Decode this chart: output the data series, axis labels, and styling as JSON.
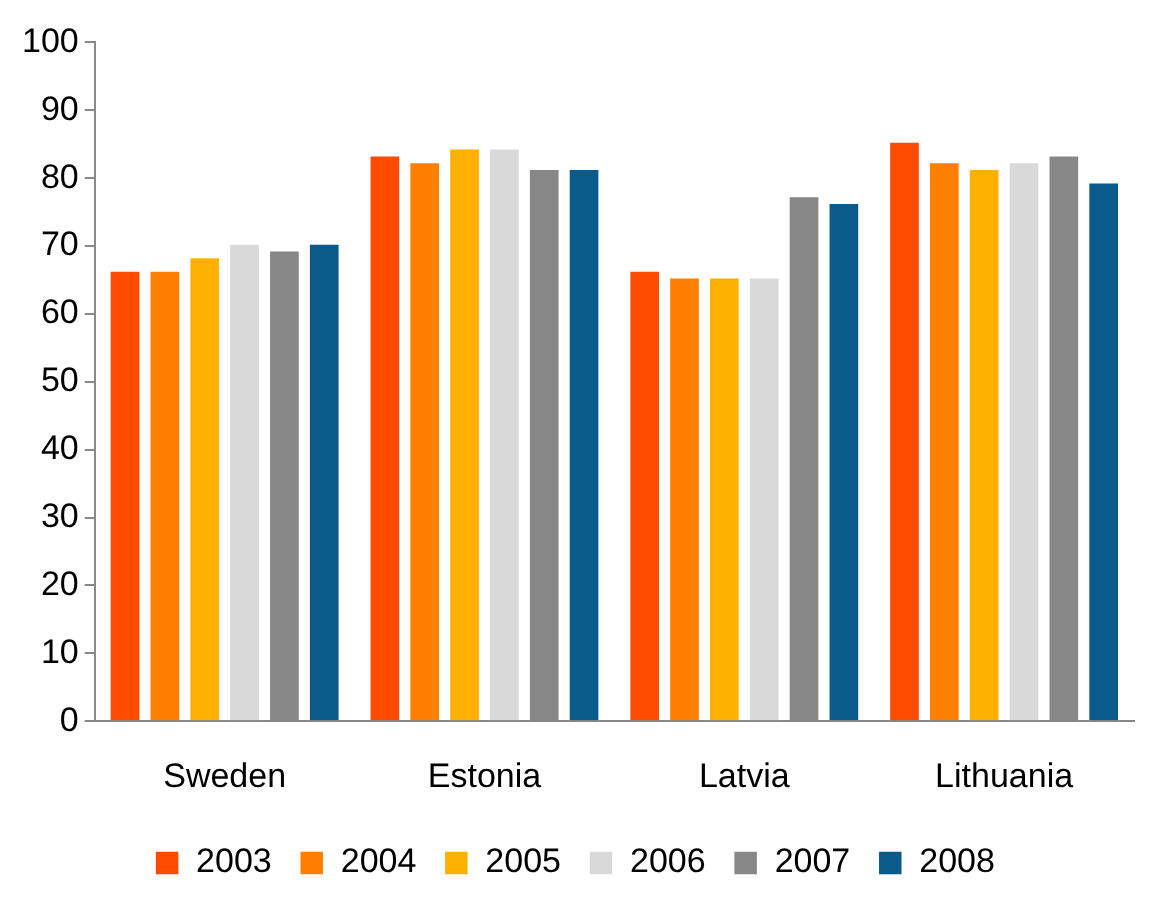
{
  "chart_data": {
    "type": "bar",
    "categories": [
      "Sweden",
      "Estonia",
      "Latvia",
      "Lithuania"
    ],
    "series": [
      {
        "name": "2003",
        "color": "#ff4b00",
        "values": [
          66.5,
          83.5,
          66.5,
          85.5
        ]
      },
      {
        "name": "2004",
        "color": "#ff8000",
        "values": [
          66.5,
          82.5,
          65.5,
          82.5
        ]
      },
      {
        "name": "2005",
        "color": "#ffb000",
        "values": [
          68.5,
          84.5,
          65.5,
          81.5
        ]
      },
      {
        "name": "2006",
        "color": "#d9d9d9",
        "values": [
          70.5,
          84.5,
          65.5,
          82.5
        ]
      },
      {
        "name": "2007",
        "color": "#878787",
        "values": [
          69.5,
          81.5,
          77.5,
          83.5
        ]
      },
      {
        "name": "2008",
        "color": "#0b5a8c",
        "values": [
          70.5,
          81.5,
          76.5,
          79.5
        ]
      }
    ],
    "ylim": [
      0,
      100
    ],
    "yticks": [
      0,
      10,
      20,
      30,
      40,
      50,
      60,
      70,
      80,
      90,
      100
    ],
    "grid": false,
    "legend": "bottom"
  }
}
